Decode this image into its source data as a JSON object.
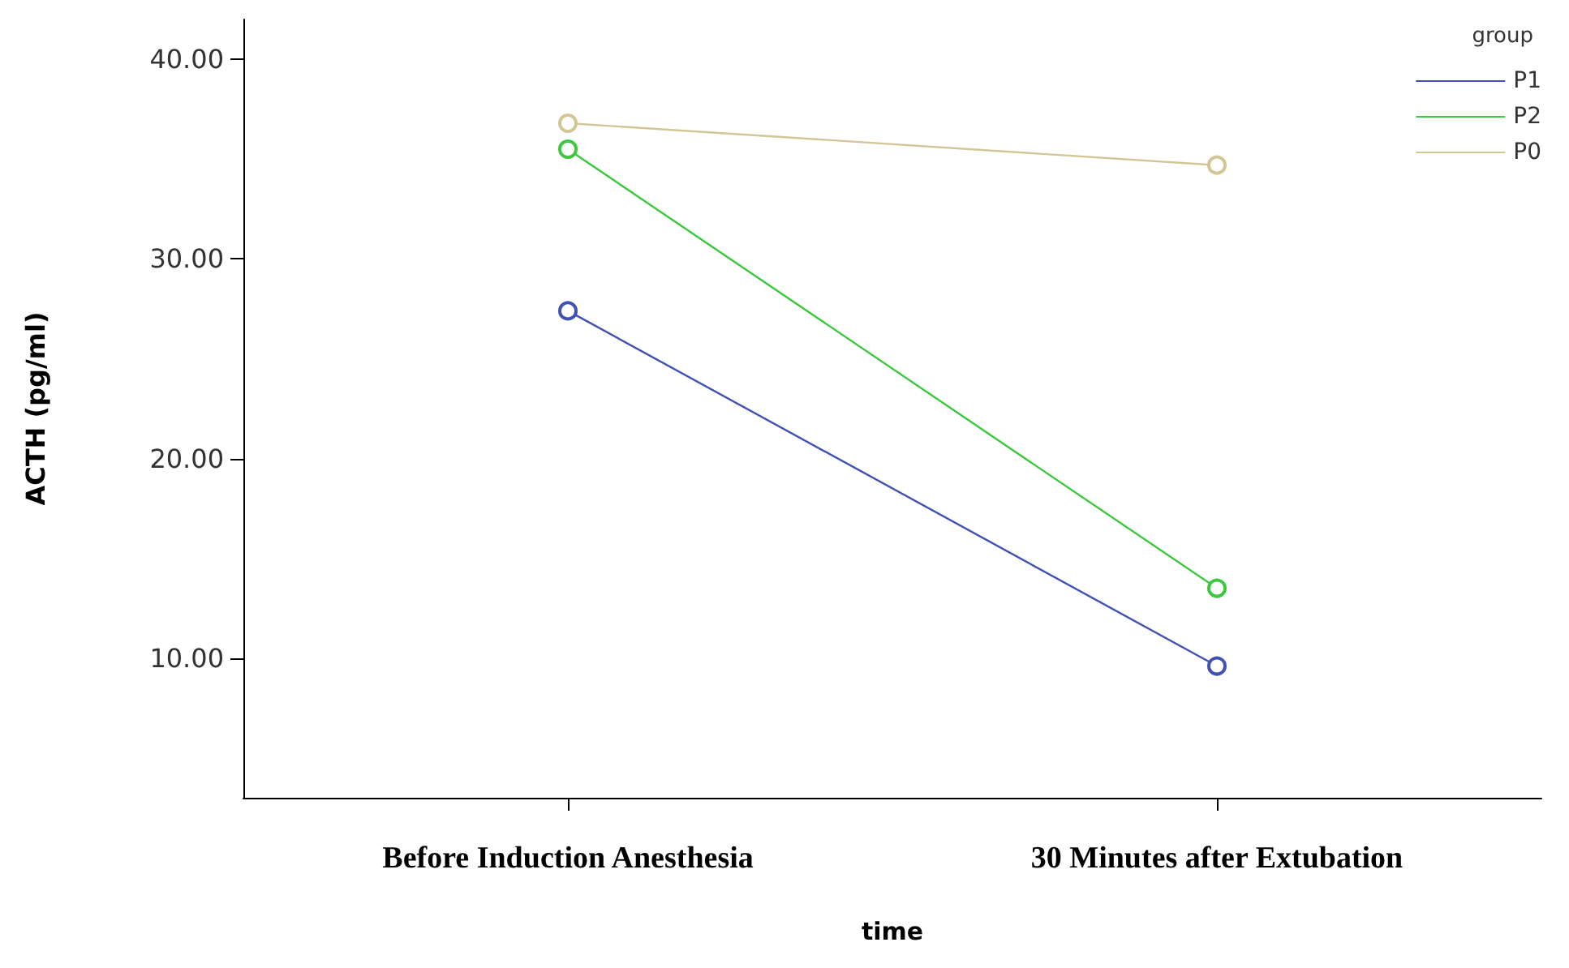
{
  "chart_data": {
    "type": "line",
    "xlabel": "time",
    "ylabel": "ACTH (pg/ml)",
    "legend_title": "group",
    "categories": [
      "Before Induction Anesthesia",
      "30 Minutes after Extubation"
    ],
    "series": [
      {
        "name": "P1",
        "color": "#3f51b5",
        "values": [
          27.4,
          9.6
        ]
      },
      {
        "name": "P2",
        "color": "#3cc83c",
        "values": [
          35.5,
          13.5
        ]
      },
      {
        "name": "P0",
        "color": "#d2c596",
        "values": [
          36.8,
          34.7
        ]
      }
    ],
    "ylim": [
      3,
      42
    ],
    "yticks": [
      {
        "value": 10,
        "label": "10.00"
      },
      {
        "value": 20,
        "label": "20.00"
      },
      {
        "value": 30,
        "label": "30.00"
      },
      {
        "value": 40,
        "label": "40.00"
      }
    ],
    "grid": false,
    "legend": "top right",
    "marker": "circle",
    "line_style": "solid"
  }
}
